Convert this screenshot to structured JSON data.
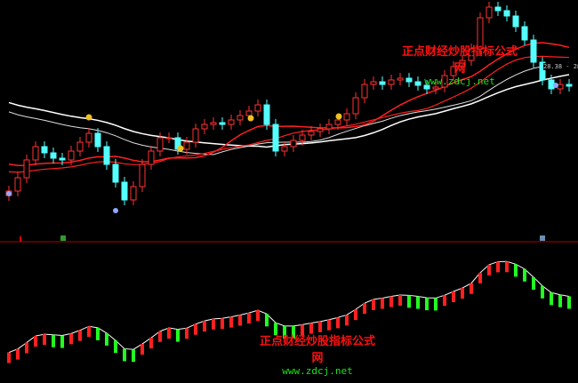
{
  "chart_data": {
    "type": "candlestick",
    "panels": [
      "price",
      "oscillator"
    ],
    "closes": [
      26.97,
      27.12,
      27.32,
      27.47,
      27.4,
      27.34,
      27.32,
      27.42,
      27.52,
      27.62,
      27.47,
      27.27,
      27.07,
      26.87,
      27.02,
      27.27,
      27.42,
      27.57,
      27.57,
      27.44,
      27.52,
      27.67,
      27.72,
      27.74,
      27.72,
      27.77,
      27.82,
      27.87,
      27.94,
      27.72,
      27.42,
      27.47,
      27.54,
      27.6,
      27.64,
      27.67,
      27.72,
      27.77,
      27.84,
      28.02,
      28.17,
      28.2,
      28.17,
      28.22,
      28.24,
      28.2,
      28.16,
      28.12,
      28.14,
      28.27,
      28.37,
      28.44,
      28.57,
      28.92,
      29.04,
      29.0,
      28.94,
      28.82,
      28.67,
      28.42,
      28.22,
      28.12,
      28.17,
      28.15
    ],
    "price_range_label": "28.38 - 28.31",
    "colors": {
      "up": "#ff3232",
      "down": "#54ffff",
      "ma_long": "#ffffff",
      "ma_short": "#ff2020",
      "osc_up": "#ff2020",
      "osc_down": "#20ff20",
      "divider": "#b00000"
    },
    "grid": false
  },
  "watermark": {
    "title": "正点财经炒股指标公式网",
    "url": "www.zdcj.net"
  }
}
